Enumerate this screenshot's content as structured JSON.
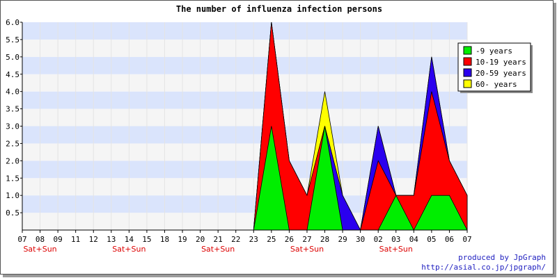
{
  "chart_data": {
    "type": "area",
    "title": "The number of influenza infection persons",
    "x": [
      "07",
      "08",
      "09",
      "11",
      "12",
      "13",
      "14",
      "15",
      "18",
      "19",
      "20",
      "21",
      "22",
      "23",
      "25",
      "26",
      "27",
      "28",
      "29",
      "30",
      "02",
      "03",
      "04",
      "05",
      "06",
      "07"
    ],
    "weekend_labels": [
      {
        "index": 1,
        "text": "Sat+Sun"
      },
      {
        "index": 6,
        "text": "Sat+Sun"
      },
      {
        "index": 11,
        "text": "Sat+Sun"
      },
      {
        "index": 16,
        "text": "Sat+Sun"
      },
      {
        "index": 21,
        "text": "Sat+Sun"
      }
    ],
    "ylim": [
      0,
      6
    ],
    "y_ticks": [
      "0.5",
      "1.0",
      "1.5",
      "2.0",
      "2.5",
      "3.0",
      "3.5",
      "4.0",
      "4.5",
      "5.0",
      "5.5",
      "6.0"
    ],
    "stacked": true,
    "series": [
      {
        "name": "-9 years",
        "color": "#00ee00",
        "values": [
          0,
          0,
          0,
          0,
          0,
          0,
          0,
          0,
          0,
          0,
          0,
          0,
          0,
          0,
          3,
          0,
          0,
          3,
          0,
          0,
          0,
          1,
          0,
          1,
          1,
          0
        ]
      },
      {
        "name": "10-19 years",
        "color": "#ff0000",
        "values": [
          0,
          0,
          0,
          0,
          0,
          0,
          0,
          0,
          0,
          0,
          0,
          0,
          0,
          0,
          3,
          2,
          1,
          0,
          0,
          0,
          2,
          0,
          1,
          3,
          1,
          1
        ]
      },
      {
        "name": "20-59 years",
        "color": "#2a00ee",
        "values": [
          0,
          0,
          0,
          0,
          0,
          0,
          0,
          0,
          0,
          0,
          0,
          0,
          0,
          0,
          0,
          0,
          0,
          0,
          1,
          0,
          1,
          0,
          0,
          1,
          0,
          0
        ]
      },
      {
        "name": "60- years",
        "color": "#ffff00",
        "values": [
          0,
          0,
          0,
          0,
          0,
          0,
          0,
          0,
          0,
          0,
          0,
          0,
          0,
          0,
          0,
          0,
          0,
          1,
          0,
          0,
          0,
          0,
          0,
          0,
          0,
          0
        ]
      }
    ],
    "legend_position": "top-right",
    "band_colors": [
      "#f5f5f5",
      "#dae4fc"
    ],
    "weekend_color": "#dd0000"
  },
  "footer": {
    "credit_line1": "produced by JpGraph",
    "credit_line2": "http://asial.co.jp/jpgraph/"
  }
}
